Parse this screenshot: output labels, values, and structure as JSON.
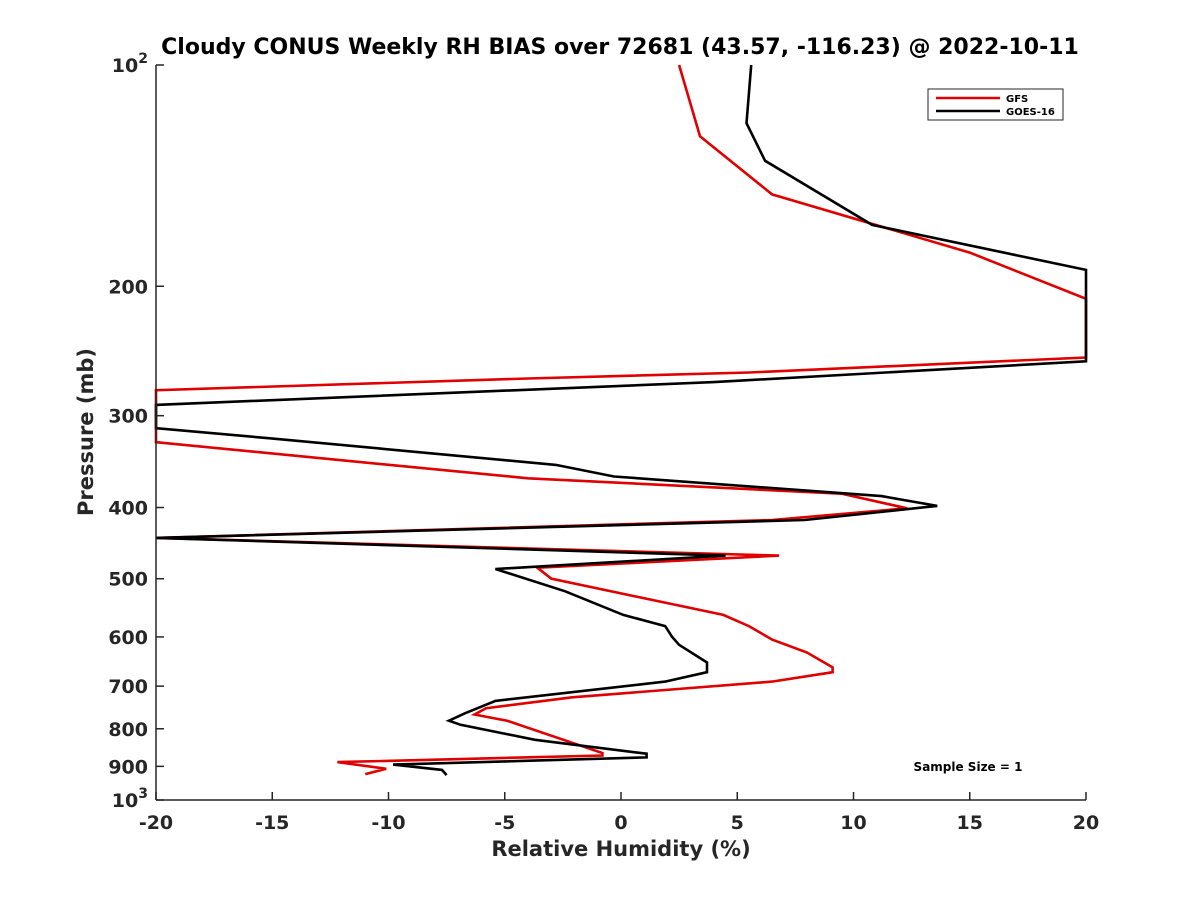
{
  "chart_data": {
    "type": "line",
    "title": "Cloudy CONUS Weekly RH BIAS over 72681 (43.57, -116.23) @ 2022-10-11",
    "xlabel": "Relative Humidity (%)",
    "ylabel": "Pressure (mb)",
    "xlim": [
      -20,
      20
    ],
    "ylim": [
      100,
      1000
    ],
    "y_scale": "log",
    "y_reversed": true,
    "x_ticks": [
      "-20",
      "-15",
      "-10",
      "-5",
      "0",
      "5",
      "10",
      "15",
      "20"
    ],
    "y_tick_labels": [
      {
        "value": 100,
        "base": "10",
        "exp": "2"
      },
      {
        "value": 200,
        "label": "200"
      },
      {
        "value": 300,
        "label": "300"
      },
      {
        "value": 400,
        "label": "400"
      },
      {
        "value": 500,
        "label": "500"
      },
      {
        "value": 600,
        "label": "600"
      },
      {
        "value": 700,
        "label": "700"
      },
      {
        "value": 800,
        "label": "800"
      },
      {
        "value": 900,
        "label": "900"
      },
      {
        "value": 1000,
        "base": "10",
        "exp": "3"
      }
    ],
    "legend_position": "top-right",
    "annotation": "Sample Size = 1",
    "series": [
      {
        "name": "GFS",
        "color": "#e00000",
        "points": [
          [
            2.5,
            100
          ],
          [
            3.4,
            125
          ],
          [
            6.5,
            150
          ],
          [
            15,
            180
          ],
          [
            20,
            208
          ],
          [
            20,
            250
          ],
          [
            5.5,
            262
          ],
          [
            -4,
            267
          ],
          [
            -20,
            277
          ],
          [
            -20,
            326
          ],
          [
            -4,
            365
          ],
          [
            9.5,
            383
          ],
          [
            12.3,
            401
          ],
          [
            6.5,
            416
          ],
          [
            -20,
            440
          ],
          [
            6.8,
            465
          ],
          [
            -3.6,
            483
          ],
          [
            -3,
            500
          ],
          [
            4.4,
            560
          ],
          [
            5.5,
            580
          ],
          [
            6.5,
            605
          ],
          [
            8,
            630
          ],
          [
            9.1,
            660
          ],
          [
            9.1,
            670
          ],
          [
            6.5,
            690
          ],
          [
            -2.1,
            725
          ],
          [
            -5.8,
            750
          ],
          [
            -6.3,
            765
          ],
          [
            -4.9,
            780
          ],
          [
            -0.8,
            863
          ],
          [
            -0.8,
            870
          ],
          [
            -12.2,
            888
          ],
          [
            -10.1,
            907
          ],
          [
            -11,
            922
          ]
        ]
      },
      {
        "name": "GOES-16",
        "color": "#000000",
        "points": [
          [
            5.6,
            100
          ],
          [
            5.4,
            120
          ],
          [
            6.2,
            135
          ],
          [
            10.8,
            165
          ],
          [
            20,
            190
          ],
          [
            20,
            253
          ],
          [
            4,
            270
          ],
          [
            -20,
            290
          ],
          [
            -20,
            312
          ],
          [
            -15.1,
            322
          ],
          [
            -2.8,
            350
          ],
          [
            -0.3,
            363
          ],
          [
            11.2,
            386
          ],
          [
            13.6,
            398
          ],
          [
            7.9,
            416
          ],
          [
            -20,
            440
          ],
          [
            4.5,
            465
          ],
          [
            -5.4,
            485
          ],
          [
            -2.4,
            520
          ],
          [
            0.1,
            560
          ],
          [
            1.9,
            580
          ],
          [
            2.2,
            600
          ],
          [
            2.5,
            615
          ],
          [
            3.7,
            650
          ],
          [
            3.7,
            670
          ],
          [
            1.9,
            690
          ],
          [
            -5.4,
            733
          ],
          [
            -6.7,
            762
          ],
          [
            -7.4,
            780
          ],
          [
            -6.9,
            790
          ],
          [
            -3.7,
            828
          ],
          [
            1.1,
            865
          ],
          [
            1.1,
            875
          ],
          [
            -9.8,
            895
          ],
          [
            -7.7,
            910
          ],
          [
            -7.5,
            925
          ]
        ]
      }
    ]
  }
}
